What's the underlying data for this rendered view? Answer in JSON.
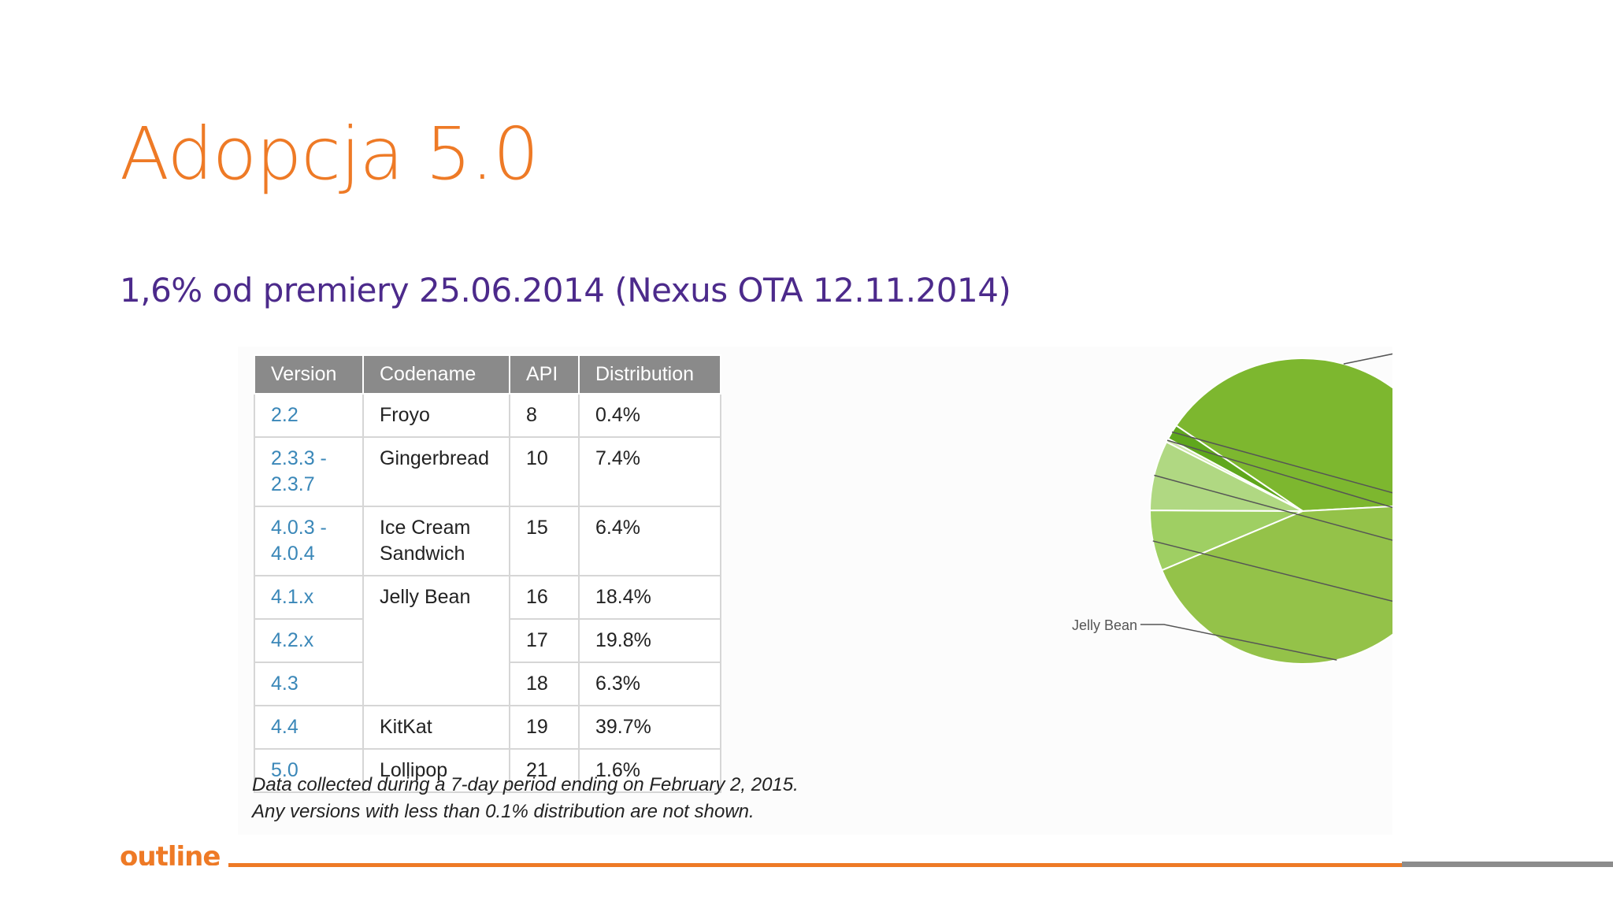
{
  "slide": {
    "title": "Adopcja 5.0",
    "subtitle": "1,6% od premiery 25.06.2014 (Nexus OTA 12.11.2014)",
    "logo_text": "outline"
  },
  "table": {
    "headers": [
      "Version",
      "Codename",
      "API",
      "Distribution"
    ],
    "rows": [
      {
        "version": "2.2",
        "codename": "Froyo",
        "api": "8",
        "distribution": "0.4%"
      },
      {
        "version": "2.3.3 - 2.3.7",
        "codename": "Gingerbread",
        "api": "10",
        "distribution": "7.4%"
      },
      {
        "version": "4.0.3 - 4.0.4",
        "codename": "Ice Cream Sandwich",
        "api": "15",
        "distribution": "6.4%"
      },
      {
        "version": "4.1.x",
        "codename": "Jelly Bean",
        "api": "16",
        "distribution": "18.4%"
      },
      {
        "version": "4.2.x",
        "codename": "",
        "api": "17",
        "distribution": "19.8%"
      },
      {
        "version": "4.3",
        "codename": "",
        "api": "18",
        "distribution": "6.3%"
      },
      {
        "version": "4.4",
        "codename": "KitKat",
        "api": "19",
        "distribution": "39.7%"
      },
      {
        "version": "5.0",
        "codename": "Lollipop",
        "api": "21",
        "distribution": "1.6%"
      }
    ],
    "footnote_line1": "Data collected during a 7-day period ending on February 2, 2015.",
    "footnote_line2": "Any versions with less than 0.1% distribution are not shown."
  },
  "chart_data": {
    "type": "pie",
    "title": "",
    "slices": [
      {
        "label": "KitKat",
        "value": 39.7,
        "color": "#7db72f"
      },
      {
        "label": "Lollipop",
        "value": 1.6,
        "color": "#5fa71c"
      },
      {
        "label": "Froyo",
        "value": 0.4,
        "color": "#cfe6ab"
      },
      {
        "label": "Gingerbread",
        "value": 7.4,
        "color": "#b0d882"
      },
      {
        "label": "Ice Cream Sandwich",
        "value": 6.4,
        "color": "#9fcf63"
      },
      {
        "label": "Jelly Bean",
        "value": 44.5,
        "color": "#94c249"
      }
    ],
    "legend": "callout labels"
  }
}
